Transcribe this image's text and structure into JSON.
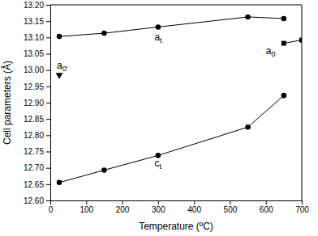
{
  "chart_data": {
    "type": "line",
    "xlabel": "Temperature (ºC)",
    "ylabel": "Cell parameters (Å)",
    "xlim": [
      0,
      700
    ],
    "xticks": [
      0,
      100,
      200,
      300,
      400,
      500,
      600,
      700
    ],
    "ylim": [
      12.6,
      13.2
    ],
    "yticks": [
      {
        "value": 12.6,
        "label": "12.60"
      },
      12.65,
      {
        "value": 12.7,
        "label": "12.70"
      },
      12.75,
      {
        "value": 12.8,
        "label": "12.80"
      },
      12.85,
      {
        "value": 12.9,
        "label": "12.90"
      },
      12.95,
      {
        "value": 13.0,
        "label": "13.00"
      },
      13.05,
      {
        "value": 13.1,
        "label": "13.10"
      },
      13.15,
      {
        "value": 13.2,
        "label": "13.20"
      }
    ],
    "grid": false,
    "series": [
      {
        "x": [
          25,
          150,
          300,
          550,
          650
        ],
        "values": [
          13.103,
          13.113,
          13.132,
          13.163,
          13.158
        ],
        "color": "#000000",
        "marker": "circle",
        "line_style": "solid"
      },
      {
        "x": [
          25,
          150,
          300,
          550,
          650
        ],
        "values": [
          12.655,
          12.693,
          12.738,
          12.825,
          12.922
        ],
        "color": "#000000",
        "marker": "circle",
        "line_style": "solid"
      },
      {
        "x": [
          650,
          700
        ],
        "values": [
          13.082,
          13.092
        ],
        "color": "#000000",
        "marker": "square",
        "line_style": "solid"
      },
      {
        "x": [
          25
        ],
        "values": [
          12.985
        ],
        "color": "#000000",
        "marker": "triangle-down",
        "line_style": "none"
      }
    ],
    "annotations": [
      {
        "text": "a",
        "subscript": "t",
        "x": 290,
        "y": 13.09
      },
      {
        "text": "c",
        "subscript": "t",
        "x": 290,
        "y": 12.703
      },
      {
        "text": "a",
        "subscript": "0",
        "x": 600,
        "y": 13.05
      },
      {
        "text": "a",
        "subscript": "0'",
        "x": 18,
        "y": 13.003
      }
    ]
  }
}
